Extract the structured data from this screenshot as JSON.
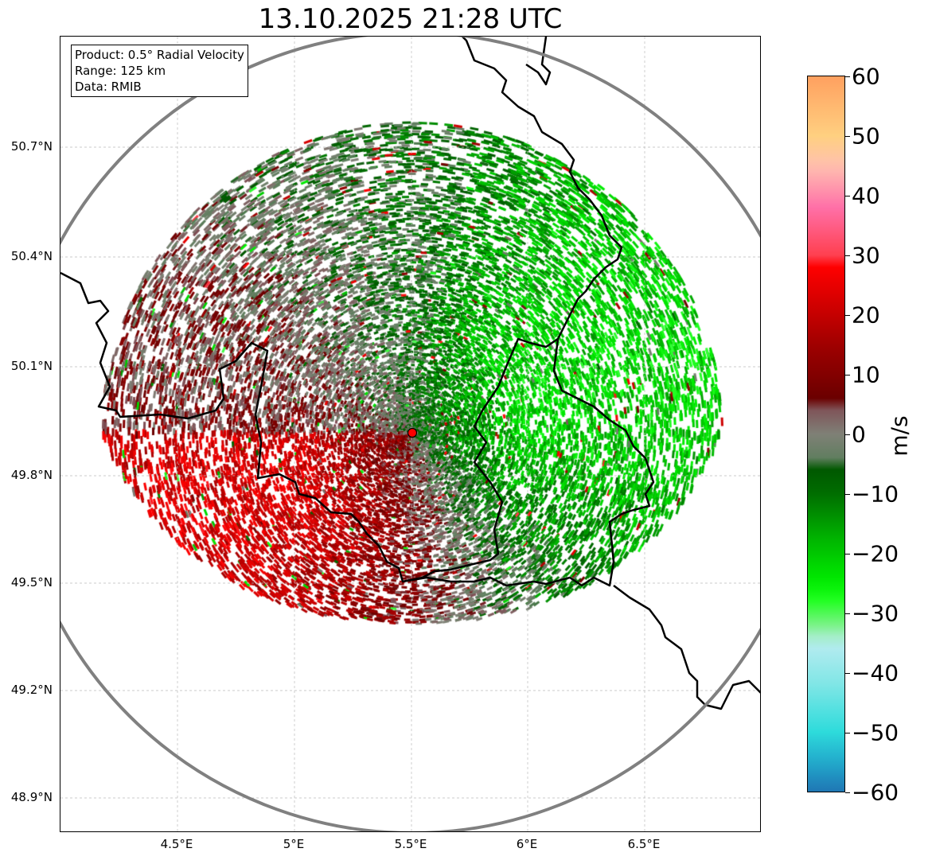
{
  "title": "13.10.2025 21:28 UTC",
  "info": {
    "line1": "Product: 0.5° Radial Velocity",
    "line2": "Range: 125 km",
    "line3": "Data: RMIB"
  },
  "lat_ticks": [
    "50.7°N",
    "50.4°N",
    "50.1°N",
    "49.8°N",
    "49.5°N",
    "49.2°N",
    "48.9°N"
  ],
  "lon_ticks": [
    "4.5°E",
    "5°E",
    "5.5°E",
    "6°E",
    "6.5°E"
  ],
  "colorbar": {
    "label": "m/s",
    "ticks": [
      "60",
      "50",
      "40",
      "30",
      "20",
      "10",
      "0",
      "−10",
      "−20",
      "−30",
      "−40",
      "−50",
      "−60"
    ],
    "range": [
      -60,
      60
    ]
  },
  "radar_site": {
    "lon": 5.505,
    "lat": 49.914,
    "color": "#ff0000"
  },
  "colors": {
    "range_ring": "#808080",
    "border": "#000000"
  }
}
